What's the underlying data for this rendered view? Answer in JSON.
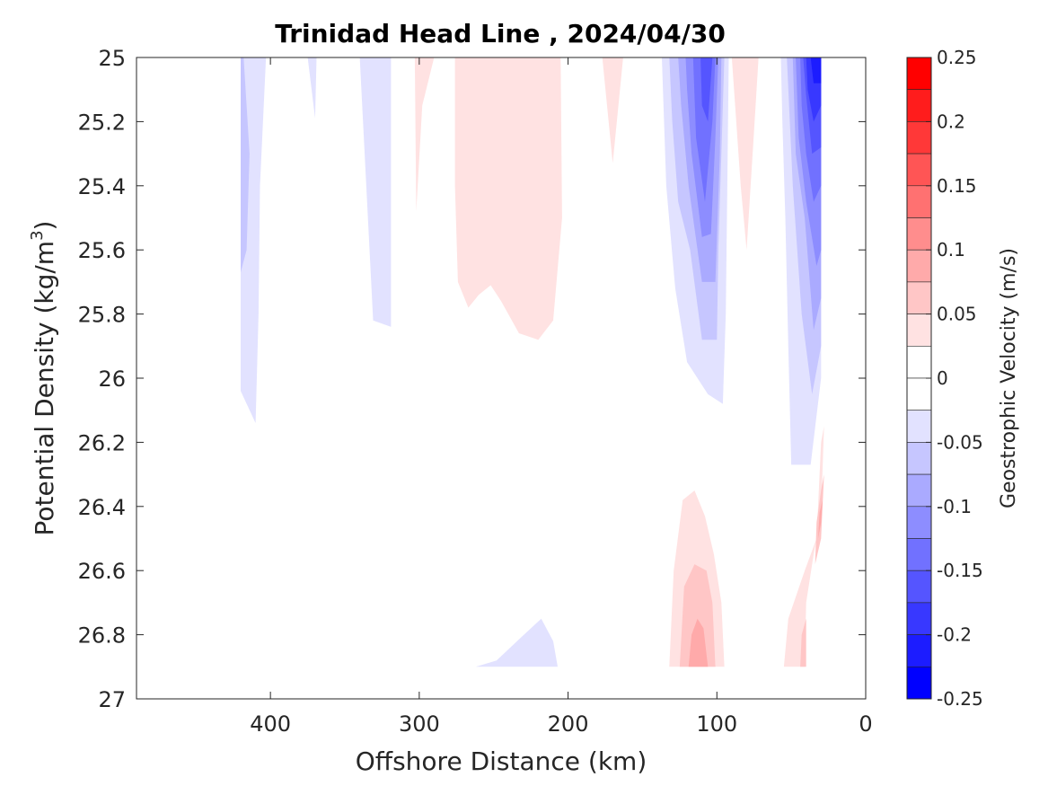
{
  "chart_data": {
    "type": "contour",
    "title": "Trinidad Head Line , 2024/04/30",
    "xlabel": "Offshore Distance (km)",
    "ylabel": "Potential Density (kg/m³)",
    "ylabel_parts": {
      "base": "Potential Density (kg/m",
      "sup": "3",
      "close": ")"
    },
    "xlim": [
      490,
      0
    ],
    "ylim": [
      25,
      27
    ],
    "x_reversed": true,
    "y_reversed": true,
    "x_ticks": [
      400,
      300,
      200,
      100,
      0
    ],
    "x_tick_labels": [
      "400",
      "300",
      "200",
      "100",
      "0"
    ],
    "y_ticks": [
      25,
      25.2,
      25.4,
      25.6,
      25.8,
      26,
      26.2,
      26.4,
      26.6,
      26.8,
      27
    ],
    "y_tick_labels": [
      "25",
      "25.2",
      "25.4",
      "25.6",
      "25.8",
      "26",
      "26.2",
      "26.4",
      "26.6",
      "26.8",
      "27"
    ],
    "colorbar": {
      "label": "Geostrophic Velocity (m/s)",
      "range": [
        -0.25,
        0.25
      ],
      "tick_values": [
        0.25,
        0.2,
        0.15,
        0.1,
        0.05,
        0,
        -0.05,
        -0.1,
        -0.15,
        -0.2,
        -0.25
      ],
      "tick_labels": [
        "0.25",
        "0.2",
        "0.15",
        "0.1",
        "0.05",
        "0",
        "-0.05",
        "-0.1",
        "-0.15",
        "-0.2",
        "-0.25"
      ],
      "levels": [
        {
          "lo": 0.225,
          "hi": 0.25,
          "color": "#ff0000"
        },
        {
          "lo": 0.2,
          "hi": 0.225,
          "color": "#ff1c1c"
        },
        {
          "lo": 0.175,
          "hi": 0.2,
          "color": "#ff3838"
        },
        {
          "lo": 0.15,
          "hi": 0.175,
          "color": "#ff5555"
        },
        {
          "lo": 0.125,
          "hi": 0.15,
          "color": "#ff7171"
        },
        {
          "lo": 0.1,
          "hi": 0.125,
          "color": "#ff8d8d"
        },
        {
          "lo": 0.075,
          "hi": 0.1,
          "color": "#ffaaaa"
        },
        {
          "lo": 0.05,
          "hi": 0.075,
          "color": "#ffc6c6"
        },
        {
          "lo": 0.025,
          "hi": 0.05,
          "color": "#ffe2e2"
        },
        {
          "lo": 0,
          "hi": 0.025,
          "color": "#ffffff"
        },
        {
          "lo": -0.025,
          "hi": 0,
          "color": "#ffffff"
        },
        {
          "lo": -0.05,
          "hi": -0.025,
          "color": "#e2e2ff"
        },
        {
          "lo": -0.075,
          "hi": -0.05,
          "color": "#c6c6ff"
        },
        {
          "lo": -0.1,
          "hi": -0.075,
          "color": "#aaaaff"
        },
        {
          "lo": -0.125,
          "hi": -0.1,
          "color": "#8d8dff"
        },
        {
          "lo": -0.15,
          "hi": -0.125,
          "color": "#7171ff"
        },
        {
          "lo": -0.175,
          "hi": -0.15,
          "color": "#5555ff"
        },
        {
          "lo": -0.2,
          "hi": -0.175,
          "color": "#3838ff"
        },
        {
          "lo": -0.225,
          "hi": -0.2,
          "color": "#1c1cff"
        },
        {
          "lo": -0.25,
          "hi": -0.225,
          "color": "#0000ff"
        }
      ]
    },
    "contour_regions": [
      {
        "name": "blue-420",
        "color": "#e2e2ff",
        "points": [
          [
            420,
            25
          ],
          [
            403,
            25
          ],
          [
            407,
            25.4
          ],
          [
            408,
            25.8
          ],
          [
            410,
            26.14
          ],
          [
            420,
            26.04
          ]
        ]
      },
      {
        "name": "blue-420-inner",
        "color": "#c6c6ff",
        "points": [
          [
            420,
            25
          ],
          [
            418,
            25
          ],
          [
            414,
            25.3
          ],
          [
            416,
            25.6
          ],
          [
            420,
            25.67
          ]
        ]
      },
      {
        "name": "blue-372",
        "color": "#e2e2ff",
        "points": [
          [
            375,
            25
          ],
          [
            369,
            25
          ],
          [
            370,
            25.19
          ]
        ]
      },
      {
        "name": "blue-330",
        "color": "#e2e2ff",
        "points": [
          [
            340,
            25
          ],
          [
            319,
            25
          ],
          [
            319,
            25.84
          ],
          [
            331,
            25.82
          ]
        ]
      },
      {
        "name": "pink-300",
        "color": "#ffe2e2",
        "points": [
          [
            303,
            25
          ],
          [
            290,
            25
          ],
          [
            298,
            25.15
          ],
          [
            302,
            25.48
          ]
        ]
      },
      {
        "name": "pink-250",
        "color": "#ffe2e2",
        "points": [
          [
            276,
            25
          ],
          [
            205,
            25
          ],
          [
            204,
            25.5
          ],
          [
            210,
            25.82
          ],
          [
            220,
            25.88
          ],
          [
            233,
            25.86
          ],
          [
            245,
            25.76
          ],
          [
            252,
            25.71
          ],
          [
            260,
            25.74
          ],
          [
            267,
            25.78
          ],
          [
            274,
            25.7
          ],
          [
            276,
            25.4
          ]
        ]
      },
      {
        "name": "pink-170",
        "color": "#ffe2e2",
        "points": [
          [
            177,
            25
          ],
          [
            163,
            25
          ],
          [
            170,
            25.33
          ]
        ]
      },
      {
        "name": "blue-deep-south",
        "color": "#e2e2ff",
        "points": [
          [
            262,
            26.9
          ],
          [
            207,
            26.9
          ],
          [
            210,
            26.82
          ],
          [
            218,
            26.75
          ],
          [
            232,
            26.81
          ],
          [
            248,
            26.88
          ]
        ]
      },
      {
        "name": "blue-115-lvl1",
        "color": "#e2e2ff",
        "points": [
          [
            137,
            25
          ],
          [
            92,
            25
          ],
          [
            93,
            25.4
          ],
          [
            94,
            25.8
          ],
          [
            96,
            26.08
          ],
          [
            106,
            26.05
          ],
          [
            120,
            25.95
          ],
          [
            128,
            25.72
          ],
          [
            134,
            25.4
          ]
        ]
      },
      {
        "name": "blue-115-lvl2",
        "color": "#c6c6ff",
        "points": [
          [
            132,
            25
          ],
          [
            95,
            25
          ],
          [
            97,
            25.3
          ],
          [
            99,
            25.6
          ],
          [
            100,
            25.88
          ],
          [
            110,
            25.88
          ],
          [
            118,
            25.6
          ],
          [
            126,
            25.45
          ],
          [
            130,
            25.2
          ]
        ]
      },
      {
        "name": "blue-115-lvl3",
        "color": "#aaaaff",
        "points": [
          [
            126,
            25
          ],
          [
            97,
            25
          ],
          [
            98,
            25.3
          ],
          [
            101,
            25.7
          ],
          [
            110,
            25.7
          ],
          [
            119,
            25.4
          ],
          [
            124,
            25.15
          ]
        ]
      },
      {
        "name": "blue-115-lvl4",
        "color": "#8d8dff",
        "points": [
          [
            121,
            25
          ],
          [
            99,
            25
          ],
          [
            101,
            25.25
          ],
          [
            104,
            25.55
          ],
          [
            110,
            25.56
          ],
          [
            117,
            25.3
          ],
          [
            120,
            25.1
          ]
        ]
      },
      {
        "name": "blue-115-lvl5",
        "color": "#7171ff",
        "points": [
          [
            116,
            25
          ],
          [
            101,
            25
          ],
          [
            103,
            25.2
          ],
          [
            108,
            25.45
          ],
          [
            114,
            25.25
          ]
        ]
      },
      {
        "name": "blue-115-lvl6",
        "color": "#5555ff",
        "points": [
          [
            111,
            25
          ],
          [
            103,
            25
          ],
          [
            106,
            25.2
          ],
          [
            110,
            25.15
          ]
        ]
      },
      {
        "name": "pink-080",
        "color": "#ffe2e2",
        "points": [
          [
            90,
            25
          ],
          [
            72,
            25
          ],
          [
            76,
            25.3
          ],
          [
            80,
            25.6
          ],
          [
            84,
            25.4
          ]
        ]
      },
      {
        "name": "blue-045-lvl1",
        "color": "#e2e2ff",
        "points": [
          [
            57,
            25
          ],
          [
            30,
            25
          ],
          [
            30,
            26.0
          ],
          [
            37,
            26.27
          ],
          [
            50,
            26.27
          ],
          [
            52,
            25.9
          ],
          [
            54,
            25.5
          ],
          [
            56,
            25.2
          ]
        ]
      },
      {
        "name": "blue-045-lvl2",
        "color": "#c6c6ff",
        "points": [
          [
            53,
            25
          ],
          [
            30,
            25
          ],
          [
            30,
            25.9
          ],
          [
            36,
            26.05
          ],
          [
            43,
            25.8
          ],
          [
            49,
            25.4
          ],
          [
            51,
            25.2
          ]
        ]
      },
      {
        "name": "blue-045-lvl3",
        "color": "#aaaaff",
        "points": [
          [
            49,
            25
          ],
          [
            30,
            25
          ],
          [
            30,
            25.75
          ],
          [
            35,
            25.85
          ],
          [
            41,
            25.5
          ],
          [
            47,
            25.3
          ]
        ]
      },
      {
        "name": "blue-045-lvl4",
        "color": "#8d8dff",
        "points": [
          [
            47,
            25
          ],
          [
            30,
            25
          ],
          [
            30,
            25.6
          ],
          [
            33,
            25.65
          ],
          [
            40,
            25.45
          ],
          [
            45,
            25.25
          ]
        ]
      },
      {
        "name": "blue-045-lvl5",
        "color": "#7171ff",
        "points": [
          [
            44,
            25
          ],
          [
            30,
            25
          ],
          [
            30,
            25.4
          ],
          [
            35,
            25.45
          ],
          [
            40,
            25.3
          ],
          [
            43,
            25.15
          ]
        ]
      },
      {
        "name": "blue-045-lvl6",
        "color": "#5555ff",
        "points": [
          [
            42,
            25
          ],
          [
            30,
            25
          ],
          [
            30,
            25.28
          ],
          [
            36,
            25.3
          ],
          [
            40,
            25.12
          ]
        ]
      },
      {
        "name": "blue-045-lvl7",
        "color": "#3838ff",
        "points": [
          [
            40,
            25
          ],
          [
            30,
            25
          ],
          [
            30,
            25.15
          ],
          [
            35,
            25.2
          ],
          [
            39,
            25.1
          ]
        ]
      },
      {
        "name": "blue-045-lvl8",
        "color": "#1c1cff",
        "points": [
          [
            37,
            25
          ],
          [
            30,
            25
          ],
          [
            30,
            25.08
          ],
          [
            35,
            25.08
          ]
        ]
      },
      {
        "name": "pink-110-lvl1",
        "color": "#ffe2e2",
        "points": [
          [
            132,
            26.9
          ],
          [
            95,
            26.9
          ],
          [
            97,
            26.7
          ],
          [
            102,
            26.55
          ],
          [
            108,
            26.43
          ],
          [
            115,
            26.35
          ],
          [
            123,
            26.38
          ],
          [
            129,
            26.6
          ]
        ]
      },
      {
        "name": "pink-110-lvl2",
        "color": "#ffc6c6",
        "points": [
          [
            125,
            26.9
          ],
          [
            101,
            26.9
          ],
          [
            103,
            26.7
          ],
          [
            107,
            26.6
          ],
          [
            115,
            26.58
          ],
          [
            122,
            26.65
          ]
        ]
      },
      {
        "name": "pink-110-lvl3",
        "color": "#ffaaaa",
        "points": [
          [
            119,
            26.9
          ],
          [
            106,
            26.9
          ],
          [
            109,
            26.78
          ],
          [
            113,
            26.75
          ],
          [
            117,
            26.8
          ]
        ]
      },
      {
        "name": "pink-040-lvl1",
        "color": "#ffe2e2",
        "points": [
          [
            55,
            26.9
          ],
          [
            41,
            26.9
          ],
          [
            40,
            26.7
          ],
          [
            35,
            26.55
          ],
          [
            30,
            26.42
          ],
          [
            28,
            26.15
          ],
          [
            30,
            26.2
          ],
          [
            33,
            26.5
          ],
          [
            41,
            26.6
          ],
          [
            52,
            26.75
          ]
        ]
      },
      {
        "name": "pink-040-lvl2",
        "color": "#ffc6c6",
        "points": [
          [
            44,
            26.9
          ],
          [
            40,
            26.9
          ],
          [
            40,
            26.75
          ],
          [
            43,
            26.8
          ]
        ]
      },
      {
        "name": "pink-040-lvl3",
        "color": "#ffc6c6",
        "points": [
          [
            34,
            26.58
          ],
          [
            30,
            26.5
          ],
          [
            28,
            26.3
          ],
          [
            30,
            26.35
          ],
          [
            33,
            26.45
          ]
        ]
      },
      {
        "name": "pink-040-lvl4",
        "color": "#ffaaaa",
        "points": [
          [
            32,
            26.5
          ],
          [
            30,
            26.45
          ],
          [
            29,
            26.38
          ],
          [
            31,
            26.42
          ]
        ]
      }
    ]
  }
}
